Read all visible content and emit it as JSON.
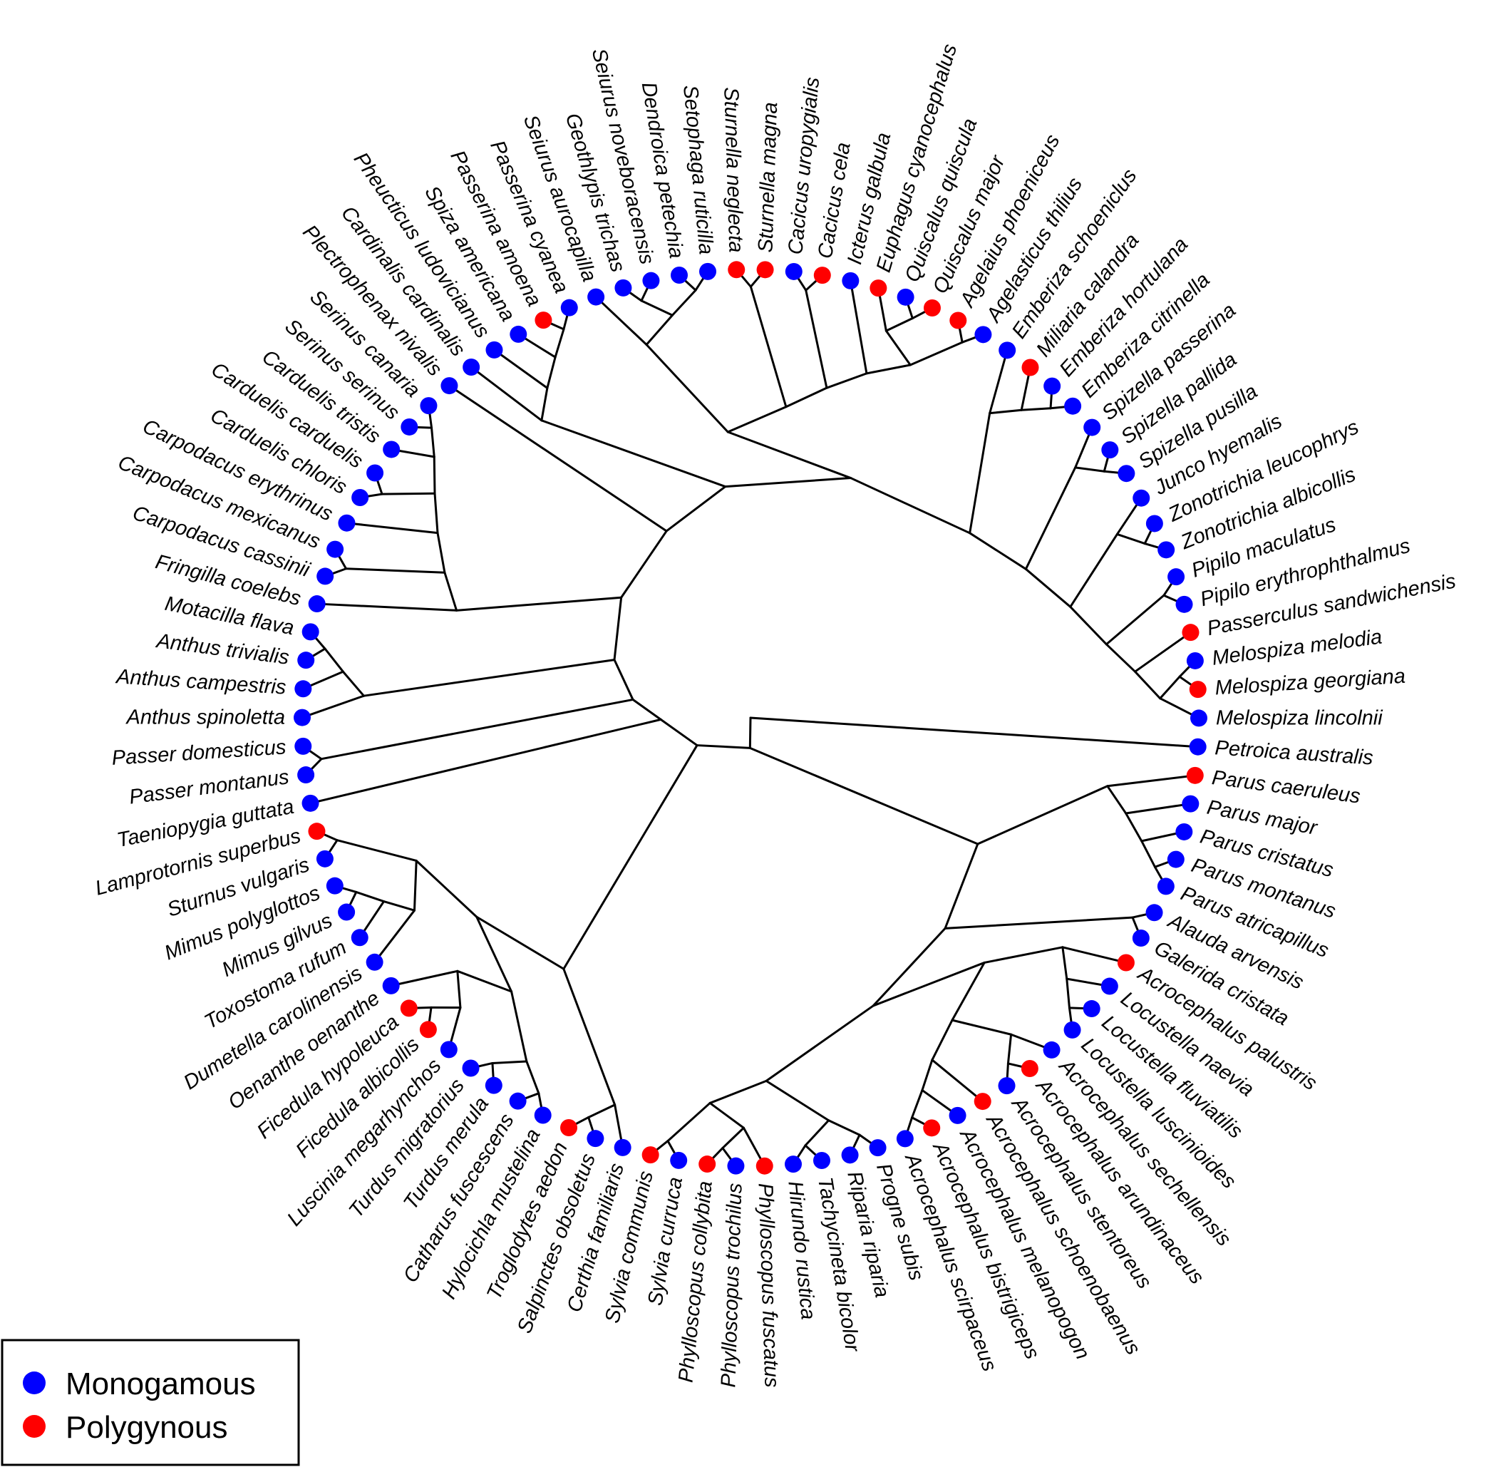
{
  "colors": {
    "Monogamous": "#0000ff",
    "Polygynous": "#ff0000"
  },
  "legend": {
    "items": [
      {
        "label": "Monogamous"
      },
      {
        "label": "Polygynous"
      }
    ]
  },
  "tips": [
    {
      "name": "Sturnella neglecta",
      "state": "Polygynous"
    },
    {
      "name": "Sturnella magna",
      "state": "Polygynous"
    },
    {
      "name": "Cacicus uropygialis",
      "state": "Monogamous"
    },
    {
      "name": "Cacicus cela",
      "state": "Polygynous"
    },
    {
      "name": "Icterus galbula",
      "state": "Monogamous"
    },
    {
      "name": "Euphagus cyanocephalus",
      "state": "Polygynous"
    },
    {
      "name": "Quiscalus quiscula",
      "state": "Monogamous"
    },
    {
      "name": "Quiscalus major",
      "state": "Polygynous"
    },
    {
      "name": "Agelaius phoeniceus",
      "state": "Polygynous"
    },
    {
      "name": "Agelasticus thilius",
      "state": "Monogamous"
    },
    {
      "name": "Emberiza schoeniclus",
      "state": "Monogamous"
    },
    {
      "name": "Miliaria calandra",
      "state": "Polygynous"
    },
    {
      "name": "Emberiza hortulana",
      "state": "Monogamous"
    },
    {
      "name": "Emberiza citrinella",
      "state": "Monogamous"
    },
    {
      "name": "Spizella passerina",
      "state": "Monogamous"
    },
    {
      "name": "Spizella pallida",
      "state": "Monogamous"
    },
    {
      "name": "Spizella pusilla",
      "state": "Monogamous"
    },
    {
      "name": "Junco hyemalis",
      "state": "Monogamous"
    },
    {
      "name": "Zonotrichia leucophrys",
      "state": "Monogamous"
    },
    {
      "name": "Zonotrichia albicollis",
      "state": "Monogamous"
    },
    {
      "name": "Pipilo maculatus",
      "state": "Monogamous"
    },
    {
      "name": "Pipilo erythrophthalmus",
      "state": "Monogamous"
    },
    {
      "name": "Passerculus sandwichensis",
      "state": "Polygynous"
    },
    {
      "name": "Melospiza melodia",
      "state": "Monogamous"
    },
    {
      "name": "Melospiza georgiana",
      "state": "Polygynous"
    },
    {
      "name": "Melospiza lincolnii",
      "state": "Monogamous"
    },
    {
      "name": "Petroica australis",
      "state": "Monogamous"
    },
    {
      "name": "Parus caeruleus",
      "state": "Polygynous"
    },
    {
      "name": "Parus major",
      "state": "Monogamous"
    },
    {
      "name": "Parus cristatus",
      "state": "Monogamous"
    },
    {
      "name": "Parus montanus",
      "state": "Monogamous"
    },
    {
      "name": "Parus atricapillus",
      "state": "Monogamous"
    },
    {
      "name": "Alauda arvensis",
      "state": "Monogamous"
    },
    {
      "name": "Galerida cristata",
      "state": "Monogamous"
    },
    {
      "name": "Acrocephalus palustris",
      "state": "Polygynous"
    },
    {
      "name": "Locustella naevia",
      "state": "Monogamous"
    },
    {
      "name": "Locustella fluviatilis",
      "state": "Monogamous"
    },
    {
      "name": "Locustella luscinioides",
      "state": "Monogamous"
    },
    {
      "name": "Acrocephalus sechellensis",
      "state": "Monogamous"
    },
    {
      "name": "Acrocephalus arundinaceus",
      "state": "Polygynous"
    },
    {
      "name": "Acrocephalus stentoreus",
      "state": "Monogamous"
    },
    {
      "name": "Acrocephalus schoenobaenus",
      "state": "Polygynous"
    },
    {
      "name": "Acrocephalus melanopogon",
      "state": "Monogamous"
    },
    {
      "name": "Acrocephalus bistrigiceps",
      "state": "Polygynous"
    },
    {
      "name": "Acrocephalus scirpaceus",
      "state": "Monogamous"
    },
    {
      "name": "Progne subis",
      "state": "Monogamous"
    },
    {
      "name": "Riparia riparia",
      "state": "Monogamous"
    },
    {
      "name": "Tachycineta bicolor",
      "state": "Monogamous"
    },
    {
      "name": "Hirundo rustica",
      "state": "Monogamous"
    },
    {
      "name": "Phylloscopus fuscatus",
      "state": "Polygynous"
    },
    {
      "name": "Phylloscopus trochilus",
      "state": "Monogamous"
    },
    {
      "name": "Phylloscopus collybita",
      "state": "Polygynous"
    },
    {
      "name": "Sylvia curruca",
      "state": "Monogamous"
    },
    {
      "name": "Sylvia communis",
      "state": "Polygynous"
    },
    {
      "name": "Certhia familiaris",
      "state": "Monogamous"
    },
    {
      "name": "Salpinctes obsoletus",
      "state": "Monogamous"
    },
    {
      "name": "Troglodytes aedon",
      "state": "Polygynous"
    },
    {
      "name": "Hylocichla mustelina",
      "state": "Monogamous"
    },
    {
      "name": "Catharus fuscescens",
      "state": "Monogamous"
    },
    {
      "name": "Turdus merula",
      "state": "Monogamous"
    },
    {
      "name": "Turdus migratorius",
      "state": "Monogamous"
    },
    {
      "name": "Luscinia megarhynchos",
      "state": "Monogamous"
    },
    {
      "name": "Ficedula albicollis",
      "state": "Polygynous"
    },
    {
      "name": "Ficedula hypoleuca",
      "state": "Polygynous"
    },
    {
      "name": "Oenanthe oenanthe",
      "state": "Monogamous"
    },
    {
      "name": "Dumetella carolinensis",
      "state": "Monogamous"
    },
    {
      "name": "Toxostoma rufum",
      "state": "Monogamous"
    },
    {
      "name": "Mimus gilvus",
      "state": "Monogamous"
    },
    {
      "name": "Mimus polyglottos",
      "state": "Monogamous"
    },
    {
      "name": "Sturnus vulgaris",
      "state": "Monogamous"
    },
    {
      "name": "Lamprotornis superbus",
      "state": "Polygynous"
    },
    {
      "name": "Taeniopygia guttata",
      "state": "Monogamous"
    },
    {
      "name": "Passer montanus",
      "state": "Monogamous"
    },
    {
      "name": "Passer domesticus",
      "state": "Monogamous"
    },
    {
      "name": "Anthus spinoletta",
      "state": "Monogamous"
    },
    {
      "name": "Anthus campestris",
      "state": "Monogamous"
    },
    {
      "name": "Anthus trivialis",
      "state": "Monogamous"
    },
    {
      "name": "Motacilla flava",
      "state": "Monogamous"
    },
    {
      "name": "Fringilla coelebs",
      "state": "Monogamous"
    },
    {
      "name": "Carpodacus cassinii",
      "state": "Monogamous"
    },
    {
      "name": "Carpodacus mexicanus",
      "state": "Monogamous"
    },
    {
      "name": "Carpodacus erythrinus",
      "state": "Monogamous"
    },
    {
      "name": "Carduelis chloris",
      "state": "Monogamous"
    },
    {
      "name": "Carduelis carduelis",
      "state": "Monogamous"
    },
    {
      "name": "Carduelis tristis",
      "state": "Monogamous"
    },
    {
      "name": "Serinus serinus",
      "state": "Monogamous"
    },
    {
      "name": "Serinus canaria",
      "state": "Monogamous"
    },
    {
      "name": "Plectrophenax nivalis",
      "state": "Monogamous"
    },
    {
      "name": "Cardinalis cardinalis",
      "state": "Monogamous"
    },
    {
      "name": "Pheucticus ludovicianus",
      "state": "Monogamous"
    },
    {
      "name": "Spiza americana",
      "state": "Monogamous"
    },
    {
      "name": "Passerina amoena",
      "state": "Polygynous"
    },
    {
      "name": "Passerina cyanea",
      "state": "Monogamous"
    },
    {
      "name": "Seiurus aurocapilla",
      "state": "Monogamous"
    },
    {
      "name": "Geothlypis trichas",
      "state": "Monogamous"
    },
    {
      "name": "Seiurus noveboracensis",
      "state": "Monogamous"
    },
    {
      "name": "Dendroica petechia",
      "state": "Monogamous"
    },
    {
      "name": "Setophaga ruticilla",
      "state": "Monogamous"
    }
  ],
  "topology": [
    26,
    [
      [
        [
          27,
          [
            28,
            [
              29,
              [
                30,
                31
              ]
            ]
          ]
        ],
        [
          [
            32,
            33
          ],
          [
            [
              [
                34,
                [
                  35,
                  [
                    36,
                    37
                  ]
                ]
              ],
              [
                [
                  38,
                  [
                    39,
                    40
                  ]
                ],
                [
                  41,
                  [
                    42,
                    [
                      43,
                      44
                    ]
                  ]
                ]
              ]
            ],
            [
              [
                [
                  45,
                  46
                ],
                [
                  47,
                  48
                ]
              ],
              [
                [
                  49,
                  [
                    50,
                    51
                  ]
                ],
                [
                  52,
                  53
                ]
              ]
            ]
          ]
        ]
      ],
      [
        [
          [
            54,
            [
              55,
              56
            ]
          ],
          [
            [
              [
                [
                  57,
                  58
                ],
                [
                  59,
                  60
                ]
              ],
              [
                [
                  61,
                  [
                    62,
                    63
                  ]
                ],
                64
              ]
            ],
            [
              [
                65,
                [
                  66,
                  [
                    67,
                    68
                  ]
                ]
              ],
              [
                69,
                70
              ]
            ]
          ]
        ],
        [
          71,
          [
            [
              72,
              73
            ],
            [
              [
                74,
                [
                  75,
                  [
                    76,
                    77
                  ]
                ]
              ],
              [
                [
                  78,
                  [
                    [
                      79,
                      80
                    ],
                    [
                      81,
                      [
                        [
                          82,
                          83
                        ],
                        [
                          84,
                          [
                            85,
                            86
                          ]
                        ]
                      ]
                    ]
                  ]
                ],
                [
                  87,
                  [
                    [
                      88,
                      [
                        89,
                        [
                          90,
                          [
                            91,
                            92
                          ]
                        ]
                      ]
                    ],
                    [
                      [
                        [
                          93,
                          [
                            [
                              94,
                              95
                            ],
                            [
                              96,
                              97
                            ]
                          ]
                        ],
                        [
                          [
                            0,
                            1
                          ],
                          [
                            [
                              2,
                              3
                            ],
                            [
                              4,
                              [
                                [
                                  5,
                                  [
                                    6,
                                    7
                                  ]
                                ],
                                [
                                  8,
                                  9
                                ]
                              ]
                            ]
                          ]
                        ]
                      ],
                      [
                        [
                          10,
                          [
                            11,
                            [
                              12,
                              13
                            ]
                          ]
                        ],
                        [
                          [
                            14,
                            [
                              15,
                              16
                            ]
                          ],
                          [
                            [
                              17,
                              [
                                18,
                                19
                              ]
                            ],
                            [
                              [
                                20,
                                21
                              ],
                              [
                                22,
                                [
                                  [
                                    23,
                                    24
                                  ],
                                  25
                                ]
                              ]
                            ]
                          ]
                        ]
                      ]
                    ]
                  ]
                ]
              ]
            ]
          ]
        ]
      ]
    ]
  ]
}
